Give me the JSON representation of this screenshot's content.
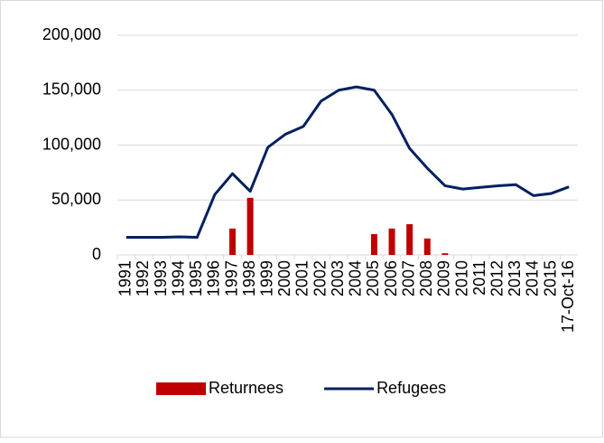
{
  "chart_data": {
    "type": "combo",
    "categories": [
      "1991",
      "1992",
      "1993",
      "1994",
      "1995",
      "1996",
      "1997",
      "1998",
      "1999",
      "2000",
      "2001",
      "2002",
      "2003",
      "2004",
      "2005",
      "2006",
      "2007",
      "2008",
      "2009",
      "2010",
      "2011",
      "2012",
      "2013",
      "2014",
      "2015",
      "17-Oct-16"
    ],
    "series": [
      {
        "name": "Returnees",
        "type": "bar",
        "color": "#c00000",
        "values": [
          null,
          null,
          null,
          null,
          null,
          null,
          24000,
          52000,
          null,
          null,
          null,
          null,
          null,
          null,
          19000,
          24000,
          28000,
          15000,
          1500,
          null,
          null,
          null,
          null,
          null,
          null,
          null
        ]
      },
      {
        "name": "Refugees",
        "type": "line",
        "color": "#002060",
        "values": [
          16000,
          16000,
          16000,
          16500,
          16000,
          55000,
          74000,
          58000,
          98000,
          110000,
          117000,
          140000,
          150000,
          153000,
          150000,
          128000,
          97000,
          79000,
          63000,
          60000,
          61500,
          63000,
          64000,
          54000,
          56000,
          62000
        ]
      }
    ],
    "ylim": [
      0,
      200000
    ],
    "yticks": [
      0,
      {
        "value": 50000,
        "label": "50,000"
      },
      {
        "value": 100000,
        "label": "100,000"
      },
      {
        "value": 150000,
        "label": "150,000"
      },
      {
        "value": 200000,
        "label": "200,000"
      }
    ],
    "grid": true,
    "legend": "bottom"
  }
}
